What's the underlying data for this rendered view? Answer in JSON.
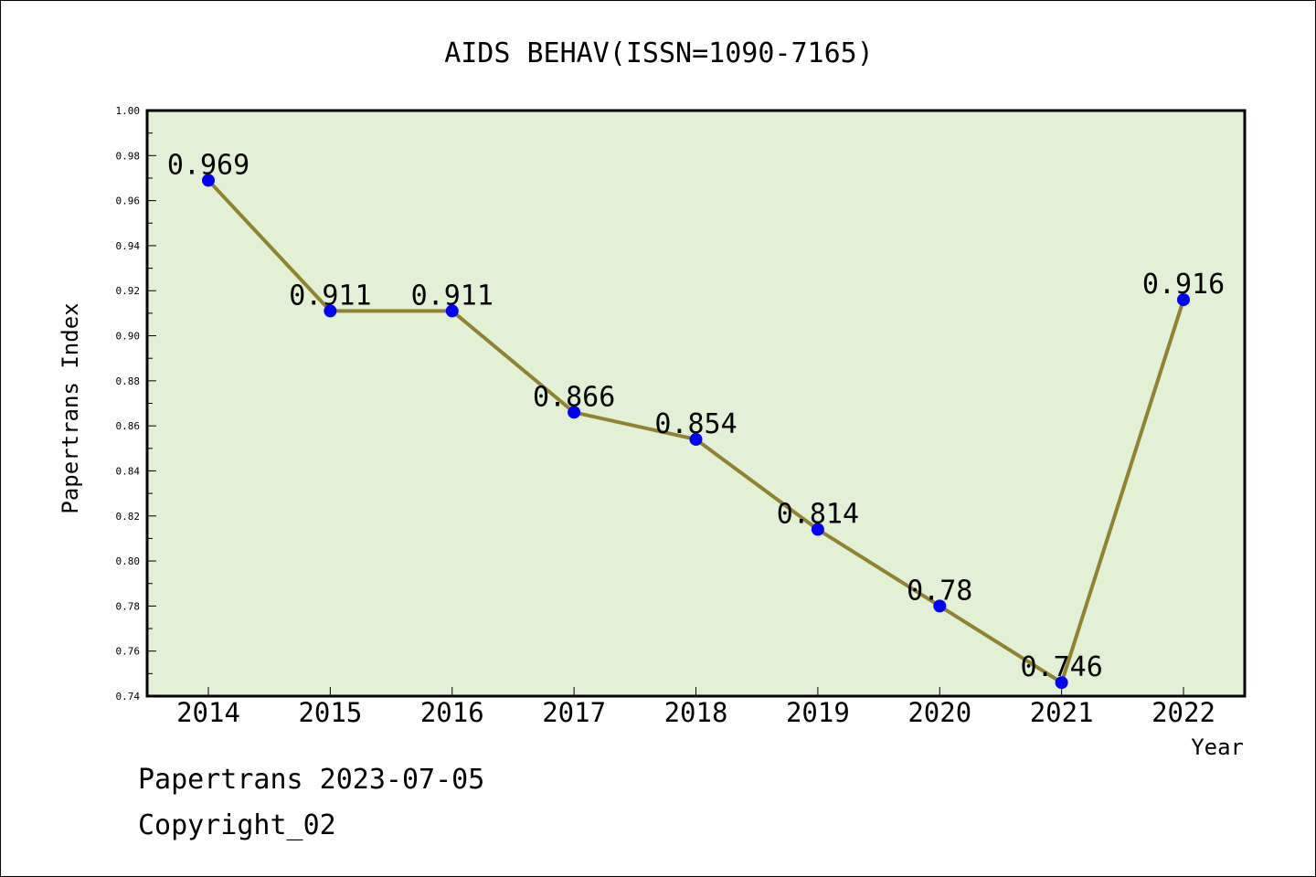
{
  "chart_data": {
    "type": "line",
    "title": "AIDS BEHAV(ISSN=1090-7165)",
    "xlabel": "Year",
    "ylabel": "Papertrans Index",
    "categories": [
      "2014",
      "2015",
      "2016",
      "2017",
      "2018",
      "2019",
      "2020",
      "2021",
      "2022"
    ],
    "values": [
      0.969,
      0.911,
      0.911,
      0.866,
      0.854,
      0.814,
      0.78,
      0.746,
      0.916
    ],
    "data_labels": [
      "0.969",
      "0.911",
      "0.911",
      "0.866",
      "0.854",
      "0.814",
      "0.78",
      "0.746",
      "0.916"
    ],
    "ylim": [
      0.74,
      1.0
    ],
    "yticks": [
      "0.74",
      "0.76",
      "0.78",
      "0.80",
      "0.82",
      "0.84",
      "0.86",
      "0.88",
      "0.90",
      "0.92",
      "0.94",
      "0.96",
      "0.98",
      "1.00"
    ],
    "grid": false,
    "colors": {
      "plot_background": "#e2f0d5",
      "line": "#8f8332",
      "marker": "#0000ff"
    }
  },
  "footer": {
    "source": "Papertrans 2023-07-05",
    "copyright": "Copyright_02"
  }
}
